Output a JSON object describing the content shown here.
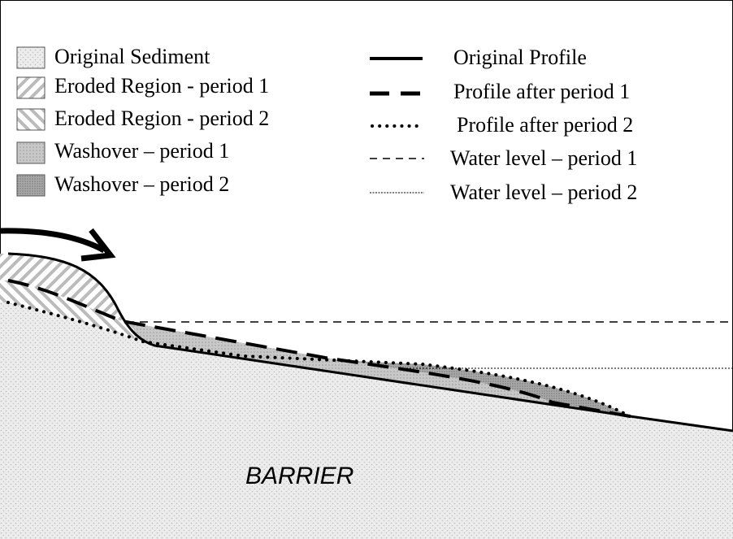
{
  "legend": {
    "areas": [
      "Original Sediment",
      "Eroded Region - period 1",
      "Eroded Region - period 2",
      "Washover – period 1",
      "Washover – period 2"
    ],
    "lines": [
      "Original Profile",
      "Profile after period 1",
      "Profile after period 2",
      "Water level – period 1",
      "Water level – period 2"
    ]
  },
  "labels": {
    "barrier": "BARRIER"
  }
}
